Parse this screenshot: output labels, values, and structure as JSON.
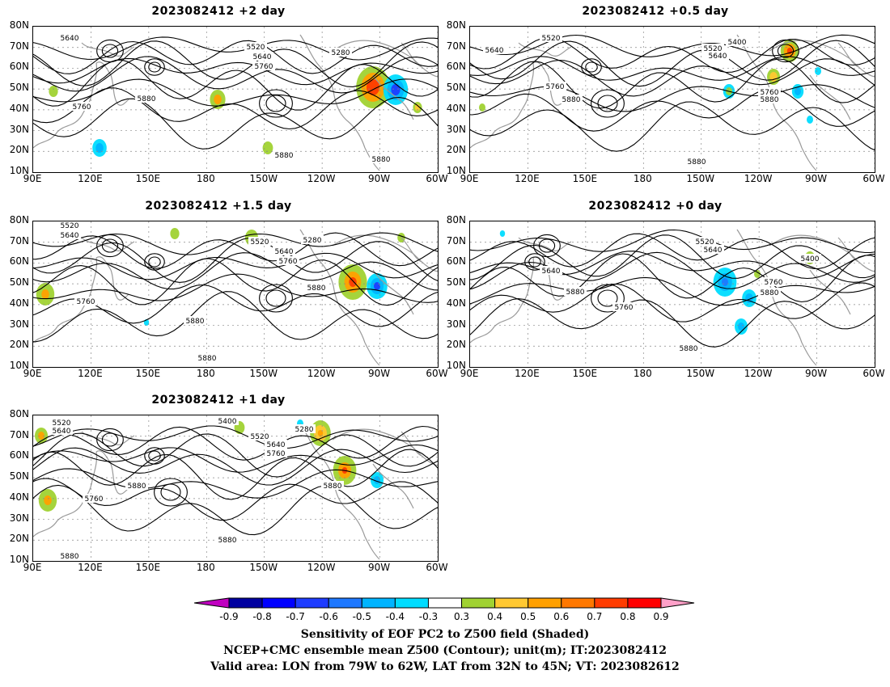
{
  "panels": [
    {
      "title": "2023082412 +2 day",
      "contour_labels": [
        "5640",
        "5520",
        "5640",
        "5760",
        "5280",
        "5760",
        "5880",
        "5880",
        "5880"
      ]
    },
    {
      "title": "2023082412 +0.5 day",
      "contour_labels": [
        "5520",
        "5640",
        "5400",
        "5520",
        "5640",
        "5760",
        "5880",
        "5760",
        "5880",
        "5880"
      ]
    },
    {
      "title": "2023082412 +1.5 day",
      "contour_labels": [
        "5520",
        "5640",
        "5520",
        "5280",
        "5640",
        "5760",
        "5760",
        "5880",
        "5880",
        "5880"
      ]
    },
    {
      "title": "2023082412 +0 day",
      "contour_labels": [
        "5520",
        "5640",
        "5400",
        "5640",
        "5880",
        "5760",
        "5760",
        "5880",
        "5880"
      ]
    },
    {
      "title": "2023082412 +1 day",
      "contour_labels": [
        "5520",
        "5640",
        "5400",
        "5280",
        "5520",
        "5640",
        "5760",
        "5880",
        "5760",
        "5880",
        "5880",
        "5880"
      ]
    }
  ],
  "lat_ticks": [
    "80N",
    "70N",
    "60N",
    "50N",
    "40N",
    "30N",
    "20N",
    "10N"
  ],
  "lon_ticks": [
    "90E",
    "120E",
    "150E",
    "180",
    "150W",
    "120W",
    "90W",
    "60W"
  ],
  "colorbar": {
    "ticks": [
      "-0.9",
      "-0.8",
      "-0.7",
      "-0.6",
      "-0.5",
      "-0.4",
      "-0.3",
      "0.3",
      "0.4",
      "0.5",
      "0.6",
      "0.7",
      "0.8",
      "0.9"
    ],
    "colors": [
      "#c000c0",
      "#0000a0",
      "#0000ff",
      "#1e3cff",
      "#1e78ff",
      "#00b4ff",
      "#00dcff",
      "#ffffff",
      "#a0d232",
      "#ffc832",
      "#ffa000",
      "#ff7800",
      "#ff3c00",
      "#ff0000",
      "#ffa0c8"
    ]
  },
  "caption": {
    "line1": "Sensitivity of EOF PC2 to Z500 field (Shaded)",
    "line2": "NCEP+CMC ensemble mean Z500 (Contour); unit(m); IT:2023082412",
    "line3": "Valid area: LON from 79W to 62W, LAT from 32N to 45N; VT: 2023082612"
  }
}
